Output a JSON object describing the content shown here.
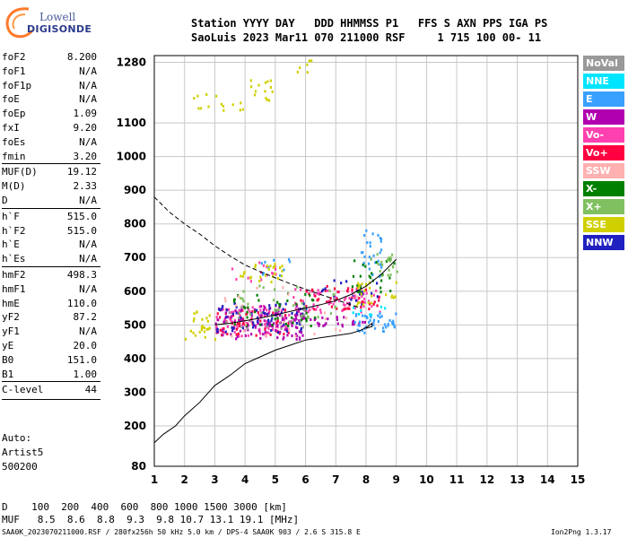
{
  "logo": {
    "line1": "Lowell",
    "line2": "DIGISONDE"
  },
  "header": {
    "line1": "Station YYYY DAY   DDD HHMMSS P1   FFS S AXN PPS IGA PS",
    "line2": "SaoLuis 2023 Mar11 070 211000 RSF     1 715 100 00- 11"
  },
  "params": [
    {
      "name": "foF2",
      "value": "8.200"
    },
    {
      "name": "foF1",
      "value": "N/A"
    },
    {
      "name": "foF1p",
      "value": "N/A"
    },
    {
      "name": "foE",
      "value": "N/A"
    },
    {
      "name": "foEp",
      "value": "1.09"
    },
    {
      "name": "fxI",
      "value": "9.20"
    },
    {
      "name": "foEs",
      "value": "N/A"
    },
    {
      "name": "fmin",
      "value": "3.20"
    },
    {
      "name": "MUF(D)",
      "value": "19.12"
    },
    {
      "name": "M(D)",
      "value": "2.33"
    },
    {
      "name": "D",
      "value": "N/A"
    },
    {
      "name": "h`F",
      "value": "515.0"
    },
    {
      "name": "h`F2",
      "value": "515.0"
    },
    {
      "name": "h`E",
      "value": "N/A"
    },
    {
      "name": "h`Es",
      "value": "N/A"
    },
    {
      "name": "hmF2",
      "value": "498.3"
    },
    {
      "name": "hmF1",
      "value": "N/A"
    },
    {
      "name": "hmE",
      "value": "110.0"
    },
    {
      "name": "yF2",
      "value": "87.2"
    },
    {
      "name": "yF1",
      "value": "N/A"
    },
    {
      "name": "yE",
      "value": "20.0"
    },
    {
      "name": "B0",
      "value": "151.0"
    },
    {
      "name": "B1",
      "value": "1.00"
    },
    {
      "name": "C-level",
      "value": "44"
    }
  ],
  "auto": {
    "l1": "Auto:",
    "l2": "Artist5",
    "l3": "500200"
  },
  "legend": [
    {
      "label": "NoVal",
      "color": "#999999"
    },
    {
      "label": "NNE",
      "color": "#00e5ff"
    },
    {
      "label": "E",
      "color": "#3aa0ff"
    },
    {
      "label": "W",
      "color": "#b000b0"
    },
    {
      "label": "Vo-",
      "color": "#ff40b0"
    },
    {
      "label": "Vo+",
      "color": "#ff0040"
    },
    {
      "label": "SSW",
      "color": "#ffb0b0"
    },
    {
      "label": "X-",
      "color": "#008000"
    },
    {
      "label": "X+",
      "color": "#80c060"
    },
    {
      "label": "SSE",
      "color": "#d0d000"
    },
    {
      "label": "NNW",
      "color": "#2020c0"
    }
  ],
  "footer": {
    "d_row": "D    100  200  400  600  800 1000 1500 3000 [km]",
    "muf_row": "MUF   8.5  8.6  8.8  9.3  9.8 10.7 13.1 19.1 [MHz]",
    "file_info": "SAA0K_2023070211000.RSF / 280fx256h 50 kHz 5.0 km / DPS-4 SAA0K 903 / 2.6 S 315.8 E",
    "version": "Ion2Png 1.3.17"
  },
  "chart_data": {
    "type": "scatter",
    "title": "",
    "xlabel": "",
    "ylabel": "",
    "xlim": [
      1,
      15
    ],
    "ylim": [
      80,
      1300
    ],
    "x_ticks": [
      1,
      2,
      3,
      4,
      5,
      6,
      7,
      8,
      9,
      10,
      11,
      12,
      13,
      14,
      15
    ],
    "y_ticks": [
      80,
      200,
      300,
      400,
      500,
      600,
      700,
      800,
      900,
      1000,
      1100,
      1280
    ],
    "grid": true,
    "series": [
      {
        "name": "Vo-",
        "color": "#ff40b0",
        "clusters": [
          {
            "x": [
              3.0,
              5.5
            ],
            "y": [
              470,
              560
            ],
            "n": 90
          },
          {
            "x": [
              5.5,
              8.5
            ],
            "y": [
              540,
              610
            ],
            "n": 70
          },
          {
            "x": [
              3.5,
              5.0
            ],
            "y": [
              630,
              690
            ],
            "n": 15
          }
        ]
      },
      {
        "name": "Vo+",
        "color": "#ff0040",
        "clusters": [
          {
            "x": [
              3.0,
              5.5
            ],
            "y": [
              470,
              550
            ],
            "n": 50
          },
          {
            "x": [
              5.8,
              8.5
            ],
            "y": [
              550,
              620
            ],
            "n": 45
          }
        ]
      },
      {
        "name": "W",
        "color": "#b000b0",
        "clusters": [
          {
            "x": [
              3.0,
              6.0
            ],
            "y": [
              460,
              560
            ],
            "n": 110
          },
          {
            "x": [
              5.0,
              8.0
            ],
            "y": [
              500,
              530
            ],
            "n": 40
          }
        ]
      },
      {
        "name": "NNW",
        "color": "#2020c0",
        "clusters": [
          {
            "x": [
              3.0,
              6.0
            ],
            "y": [
              480,
              570
            ],
            "n": 60
          },
          {
            "x": [
              6.5,
              8.5
            ],
            "y": [
              560,
              640
            ],
            "n": 20
          }
        ]
      },
      {
        "name": "E",
        "color": "#3aa0ff",
        "clusters": [
          {
            "x": [
              7.6,
              9.0
            ],
            "y": [
              480,
              540
            ],
            "n": 45
          },
          {
            "x": [
              7.8,
              8.5
            ],
            "y": [
              640,
              790
            ],
            "n": 30
          },
          {
            "x": [
              4.5,
              5.5
            ],
            "y": [
              650,
              710
            ],
            "n": 10
          }
        ]
      },
      {
        "name": "X-",
        "color": "#008000",
        "clusters": [
          {
            "x": [
              3.5,
              6.5
            ],
            "y": [
              500,
              600
            ],
            "n": 40
          },
          {
            "x": [
              7.5,
              9.0
            ],
            "y": [
              600,
              700
            ],
            "n": 25
          }
        ]
      },
      {
        "name": "X+",
        "color": "#80c060",
        "clusters": [
          {
            "x": [
              3.5,
              7.0
            ],
            "y": [
              520,
              620
            ],
            "n": 30
          },
          {
            "x": [
              8.0,
              9.0
            ],
            "y": [
              650,
              720
            ],
            "n": 20
          }
        ]
      },
      {
        "name": "SSE",
        "color": "#d0d000",
        "clusters": [
          {
            "x": [
              3.8,
              5.2
            ],
            "y": [
              630,
              690
            ],
            "n": 25
          },
          {
            "x": [
              2.0,
              3.0
            ],
            "y": [
              460,
              550
            ],
            "n": 25
          },
          {
            "x": [
              7.5,
              9.0
            ],
            "y": [
              560,
              640
            ],
            "n": 25
          },
          {
            "x": [
              2.2,
              4.0
            ],
            "y": [
              1140,
              1190
            ],
            "n": 14
          },
          {
            "x": [
              4.0,
              5.0
            ],
            "y": [
              1170,
              1230
            ],
            "n": 14
          },
          {
            "x": [
              5.5,
              6.3
            ],
            "y": [
              1250,
              1290
            ],
            "n": 6
          }
        ]
      },
      {
        "name": "SSW",
        "color": "#ffb0b0",
        "clusters": [
          {
            "x": [
              3.0,
              8.0
            ],
            "y": [
              470,
              620
            ],
            "n": 25
          }
        ]
      },
      {
        "name": "NNE",
        "color": "#00e5ff",
        "clusters": [
          {
            "x": [
              7.5,
              9.0
            ],
            "y": [
              520,
              560
            ],
            "n": 8
          }
        ]
      },
      {
        "name": "NoVal",
        "color": "#999999",
        "clusters": [
          {
            "x": [
              3.0,
              6.0
            ],
            "y": [
              490,
              560
            ],
            "n": 20
          }
        ]
      }
    ],
    "curves": [
      {
        "name": "profile",
        "style": "solid",
        "x": [
          1.0,
          1.3,
          1.7,
          2.0,
          2.5,
          3.0,
          3.5,
          4.0,
          4.5,
          5.0,
          5.5,
          6.0,
          6.5,
          7.0,
          7.5,
          7.8,
          8.0,
          8.1,
          8.2,
          8.2,
          8.0
        ],
        "y": [
          150,
          175,
          200,
          230,
          270,
          320,
          350,
          385,
          405,
          425,
          440,
          455,
          462,
          468,
          475,
          483,
          492,
          498,
          505,
          495,
          490
        ]
      },
      {
        "name": "model",
        "style": "dashed",
        "x": [
          1.0,
          1.5,
          2.0,
          2.5,
          3.0,
          3.5,
          4.0,
          4.5,
          5.0,
          5.5,
          6.0,
          6.5,
          7.0,
          7.5,
          7.8
        ],
        "y": [
          880,
          835,
          800,
          770,
          735,
          705,
          678,
          658,
          640,
          622,
          606,
          590,
          575,
          560,
          550
        ]
      },
      {
        "name": "trace",
        "style": "solid",
        "x": [
          3.0,
          3.5,
          4.0,
          4.5,
          5.0,
          5.5,
          6.0,
          6.5,
          7.0,
          7.5,
          8.0,
          8.5,
          9.0
        ],
        "y": [
          500,
          505,
          512,
          520,
          530,
          540,
          550,
          560,
          572,
          590,
          615,
          650,
          695
        ]
      }
    ]
  }
}
